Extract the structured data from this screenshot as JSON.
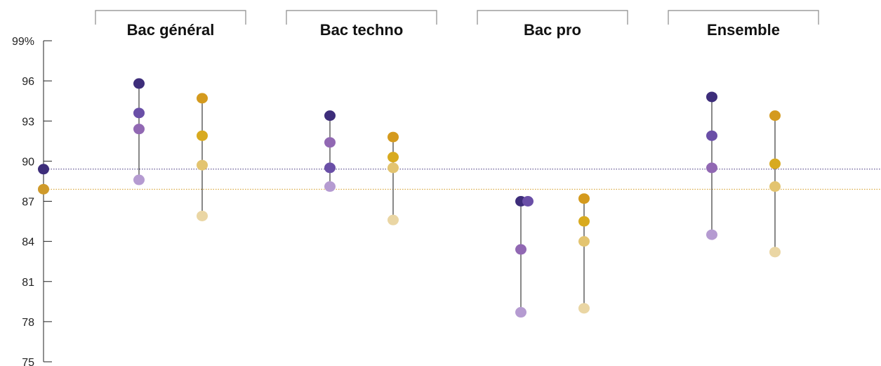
{
  "chart_data": {
    "type": "scatter",
    "title": "",
    "xlabel": "",
    "ylabel": "",
    "ylim": [
      75,
      99
    ],
    "y_ticks": [
      75,
      78,
      81,
      84,
      87,
      90,
      93,
      96,
      99
    ],
    "y_tick_labels": [
      "75",
      "78",
      "81",
      "84",
      "87",
      "90",
      "93",
      "96",
      "99%"
    ],
    "grid": false,
    "reference_lines": [
      {
        "value": 89.4,
        "color": "#3d2d7a",
        "style": "dotted"
      },
      {
        "value": 87.9,
        "color": "#d49a1e",
        "style": "dotted"
      }
    ],
    "reference_points": [
      {
        "value": 89.4,
        "color": "#3d2d7a"
      },
      {
        "value": 87.9,
        "color": "#cf9a2a"
      }
    ],
    "groups": [
      {
        "label": "Bac général",
        "columns": [
          {
            "values": [
              95.8,
              93.6,
              92.4,
              88.6
            ],
            "colors": [
              "#3d2d7a",
              "#6a4fa7",
              "#9168b3",
              "#b59bd1"
            ]
          },
          {
            "values": [
              94.7,
              91.9,
              89.7,
              85.9
            ],
            "colors": [
              "#d49a1e",
              "#d8aa1f",
              "#e3c470",
              "#ead6a4"
            ]
          }
        ]
      },
      {
        "label": "Bac techno",
        "columns": [
          {
            "values": [
              93.4,
              91.4,
              89.5,
              88.1
            ],
            "colors": [
              "#3d2d7a",
              "#9168b3",
              "#6a4fa7",
              "#b59bd1"
            ]
          },
          {
            "values": [
              91.8,
              90.3,
              89.5,
              85.6
            ],
            "colors": [
              "#d49a1e",
              "#d8aa1f",
              "#e3c470",
              "#ead6a4"
            ]
          }
        ]
      },
      {
        "label": "Bac pro",
        "columns": [
          {
            "values": [
              87.0,
              83.4,
              78.7
            ],
            "colors": [
              "#3d2d7a",
              "#9168b3",
              "#b59bd1"
            ],
            "extra_point": {
              "value": 87.0,
              "color": "#6a4fa7",
              "offset": 1
            }
          },
          {
            "values": [
              87.2,
              85.5,
              84.0,
              79.0
            ],
            "colors": [
              "#d49a1e",
              "#d8aa1f",
              "#e3c470",
              "#ead6a4"
            ]
          }
        ]
      },
      {
        "label": "Ensemble",
        "columns": [
          {
            "values": [
              94.8,
              91.9,
              89.5,
              84.5
            ],
            "colors": [
              "#3d2d7a",
              "#6a4fa7",
              "#9168b3",
              "#b59bd1"
            ]
          },
          {
            "values": [
              93.4,
              89.8,
              88.1,
              83.2
            ],
            "colors": [
              "#d49a1e",
              "#d8aa1f",
              "#e3c470",
              "#ead6a4"
            ]
          }
        ]
      }
    ]
  }
}
